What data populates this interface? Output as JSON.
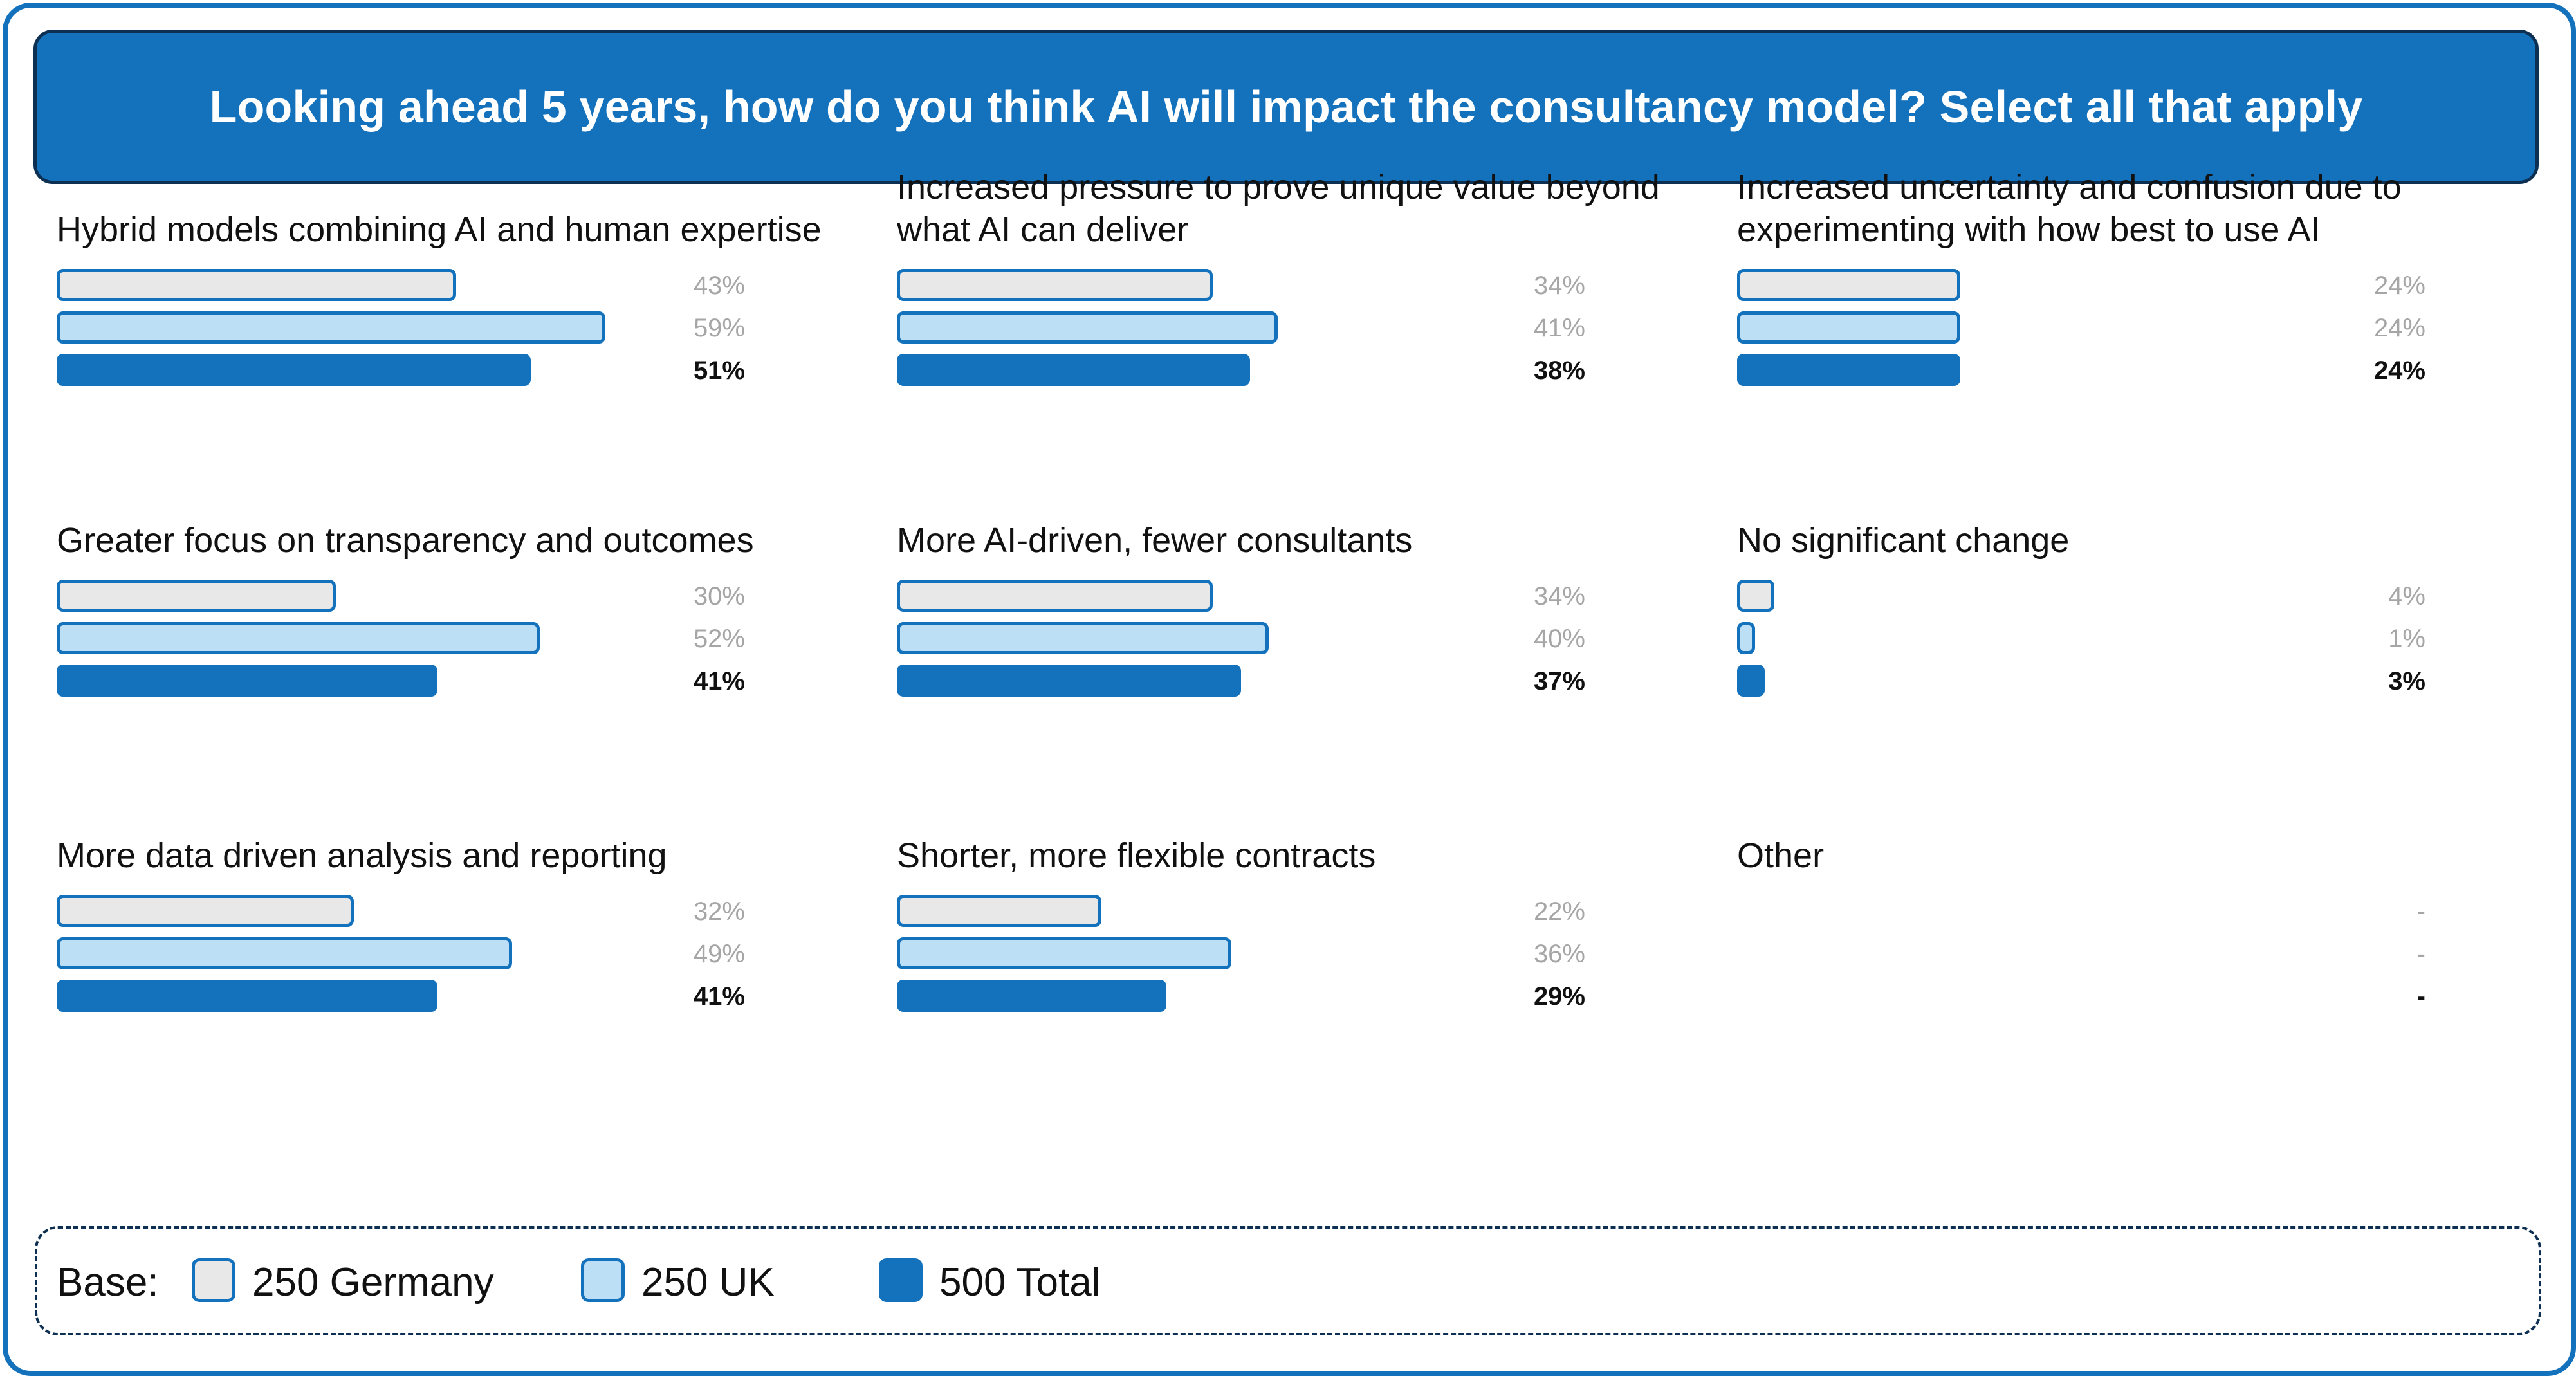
{
  "title": "Looking ahead 5 years, how do you think AI will impact the consultancy model? Select all that apply",
  "colors": {
    "germany_fill": "#e8e8e8",
    "uk_fill": "#bddff6",
    "total_fill": "#1472bd",
    "border": "#1472bd",
    "header_bg": "#1472bd",
    "dark_border": "#0d2f52"
  },
  "chart_data": {
    "type": "bar",
    "orientation": "horizontal",
    "title": "Looking ahead 5 years, how do you think AI will impact the consultancy model? Select all that apply",
    "unit": "%",
    "xlim": [
      0,
      70
    ],
    "series_names": [
      "250 Germany",
      "250 UK",
      "500 Total"
    ],
    "panels": [
      {
        "label": "Hybrid models combining AI and human expertise",
        "values": [
          43,
          59,
          51
        ],
        "display": [
          "43%",
          "59%",
          "51%"
        ]
      },
      {
        "label": "Increased pressure to prove unique value beyond what AI can deliver",
        "values": [
          34,
          41,
          38
        ],
        "display": [
          "34%",
          "41%",
          "38%"
        ]
      },
      {
        "label": "Increased uncertainty and confusion due to experimenting with how best to use AI",
        "values": [
          24,
          24,
          24
        ],
        "display": [
          "24%",
          "24%",
          "24%"
        ]
      },
      {
        "label": "Greater focus on transparency and outcomes",
        "values": [
          30,
          52,
          41
        ],
        "display": [
          "30%",
          "52%",
          "41%"
        ]
      },
      {
        "label": "More AI-driven, fewer consultants",
        "values": [
          34,
          40,
          37
        ],
        "display": [
          "34%",
          "40%",
          "37%"
        ]
      },
      {
        "label": "No significant change",
        "values": [
          4,
          1,
          3
        ],
        "display": [
          "4%",
          "1%",
          "3%"
        ]
      },
      {
        "label": "More data driven analysis and reporting",
        "values": [
          32,
          49,
          41
        ],
        "display": [
          "32%",
          "49%",
          "41%"
        ]
      },
      {
        "label": "Shorter, more flexible contracts",
        "values": [
          22,
          36,
          29
        ],
        "display": [
          "22%",
          "36%",
          "29%"
        ]
      },
      {
        "label": "Other",
        "values": [
          null,
          null,
          null
        ],
        "display": [
          "-",
          "-",
          "-"
        ]
      }
    ]
  },
  "legend": {
    "title": "Base:",
    "items": [
      {
        "label": "250 Germany"
      },
      {
        "label": "250 UK"
      },
      {
        "label": "500 Total"
      }
    ]
  }
}
